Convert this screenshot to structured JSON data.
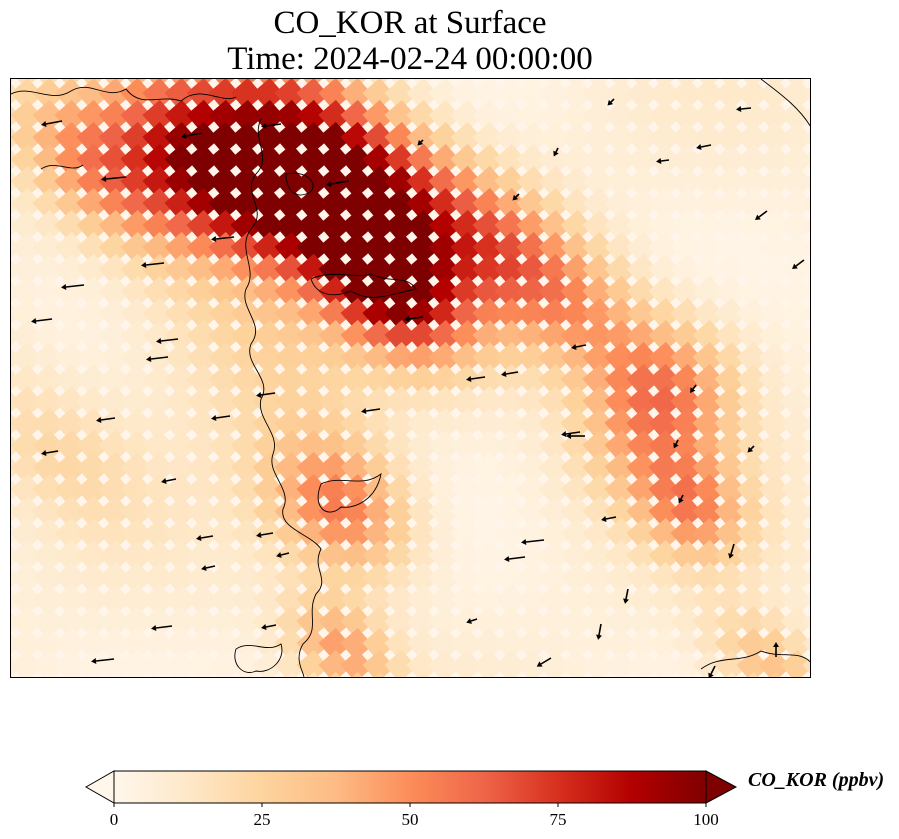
{
  "title": {
    "line1": "CO_KOR at Surface",
    "line2": "Time: 2024-02-24 00:00:00"
  },
  "colorbar": {
    "label": "CO_KOR (ppbv)",
    "min": 0,
    "max": 100,
    "ticks": [
      "0",
      "25",
      "50",
      "75",
      "100"
    ],
    "extend": "both",
    "colormap": "OrRd",
    "stops": [
      "#fff7ec",
      "#fee8c8",
      "#fdd49e",
      "#fdbb84",
      "#fc8d59",
      "#ef6548",
      "#d7301f",
      "#b30000",
      "#7f0000"
    ]
  },
  "map": {
    "variable": "CO_KOR",
    "level": "Surface",
    "wind_vectors": "black arrows",
    "coastlines": "black"
  }
}
